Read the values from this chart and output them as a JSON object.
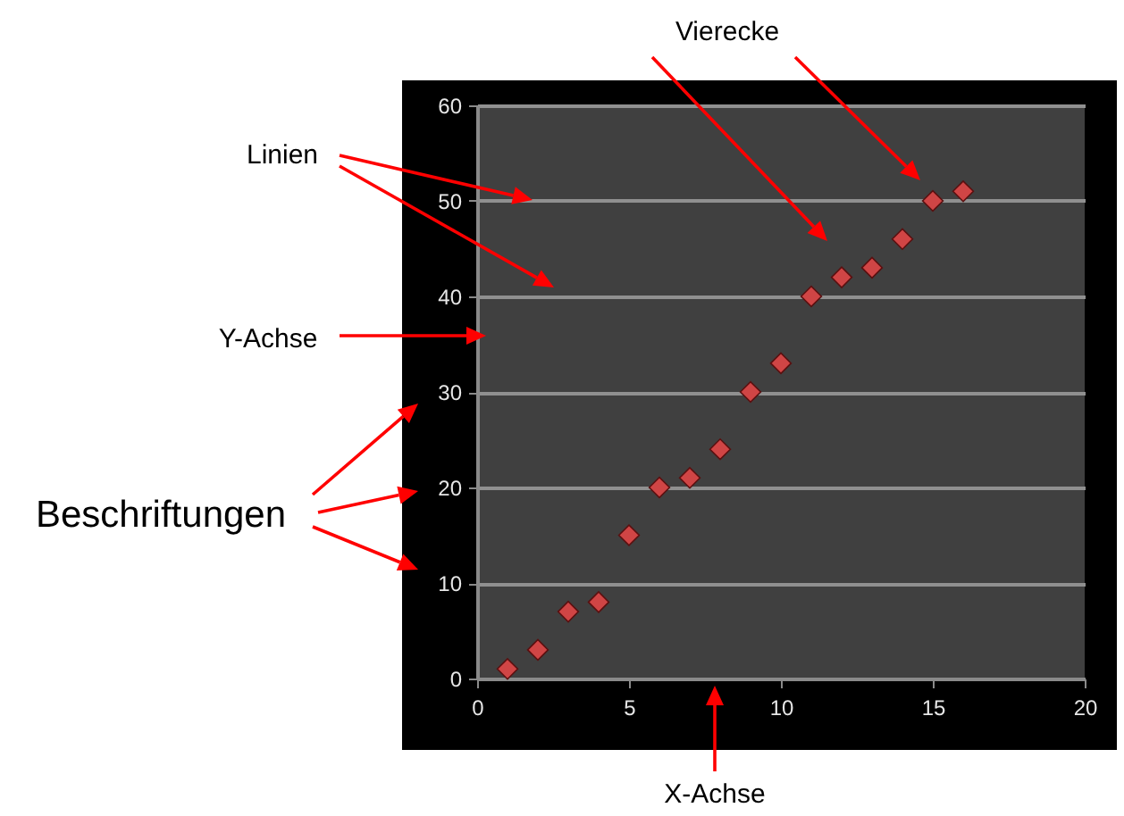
{
  "chart_data": {
    "type": "scatter",
    "x": [
      1,
      2,
      3,
      4,
      5,
      6,
      7,
      8,
      9,
      10,
      11,
      12,
      13,
      14,
      15,
      16
    ],
    "series": [
      {
        "color": "#d04545",
        "values": [
          1,
          3,
          7,
          8,
          15,
          20,
          21,
          24,
          30,
          33,
          40,
          42,
          43,
          46,
          50,
          51
        ]
      }
    ],
    "xlim": [
      0,
      20
    ],
    "xticks": [
      0,
      5,
      10,
      15,
      20
    ],
    "ylim": [
      0,
      60
    ],
    "yticks": [
      0,
      10,
      20,
      30,
      40,
      50,
      60
    ],
    "grid": "y",
    "marker": "diamond",
    "annotations": [
      "Vierecke",
      "Linien",
      "Y-Achse",
      "Beschriftungen",
      "X-Achse"
    ]
  }
}
